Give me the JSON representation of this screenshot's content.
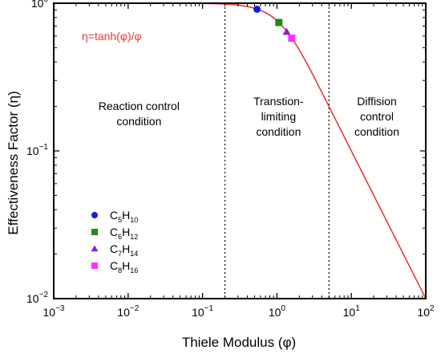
{
  "chart_data": {
    "type": "line",
    "xlabel": "Thiele Modulus (φ)",
    "ylabel": "Effectiveness Factor (η)",
    "xscale": "log",
    "yscale": "log",
    "xlim": [
      0.001,
      100
    ],
    "ylim": [
      0.01,
      1
    ],
    "x_ticks": [
      {
        "value": 0.001,
        "base": "10",
        "exp": "−3"
      },
      {
        "value": 0.01,
        "base": "10",
        "exp": "−2"
      },
      {
        "value": 0.1,
        "base": "10",
        "exp": "−1"
      },
      {
        "value": 1,
        "base": "10",
        "exp": "0"
      },
      {
        "value": 10,
        "base": "10",
        "exp": "1"
      },
      {
        "value": 100,
        "base": "10",
        "exp": "2"
      }
    ],
    "y_ticks": [
      {
        "value": 0.01,
        "base": "10",
        "exp": "−2"
      },
      {
        "value": 0.1,
        "base": "10",
        "exp": "−1"
      },
      {
        "value": 1,
        "base": "10",
        "exp": "0"
      }
    ],
    "curve": {
      "label": "η=tanh(φ)/φ",
      "color": "#e8383b",
      "phi_range": [
        0.001,
        100
      ]
    },
    "vlines": [
      0.2,
      5
    ],
    "regions": [
      {
        "lines": [
          "Reaction control",
          "condition"
        ],
        "x": 0.014,
        "y": 0.3
      },
      {
        "lines": [
          "Transtion-",
          "limiting",
          "condition"
        ],
        "x": 1.05,
        "y": 0.3
      },
      {
        "lines": [
          "Diffision",
          "control",
          "condition"
        ],
        "x": 22,
        "y": 0.3
      }
    ],
    "series": [
      {
        "base": "C",
        "n1": "5",
        "mid": "H",
        "n2": "10",
        "marker": "circle",
        "color": "#1a1adf",
        "x": 0.54,
        "y": 0.91
      },
      {
        "base": "C",
        "n1": "6",
        "mid": "H",
        "n2": "12",
        "marker": "square",
        "color": "#1e8a1e",
        "x": 1.06,
        "y": 0.74
      },
      {
        "base": "C",
        "n1": "7",
        "mid": "H",
        "n2": "14",
        "marker": "triangle",
        "color": "#8a1ee0",
        "x": 1.35,
        "y": 0.64
      },
      {
        "base": "C",
        "n1": "8",
        "mid": "H",
        "n2": "16",
        "marker": "square",
        "color": "#ff33ff",
        "x": 1.58,
        "y": 0.58
      }
    ],
    "legend_placement": "lower-left",
    "grid": false
  }
}
